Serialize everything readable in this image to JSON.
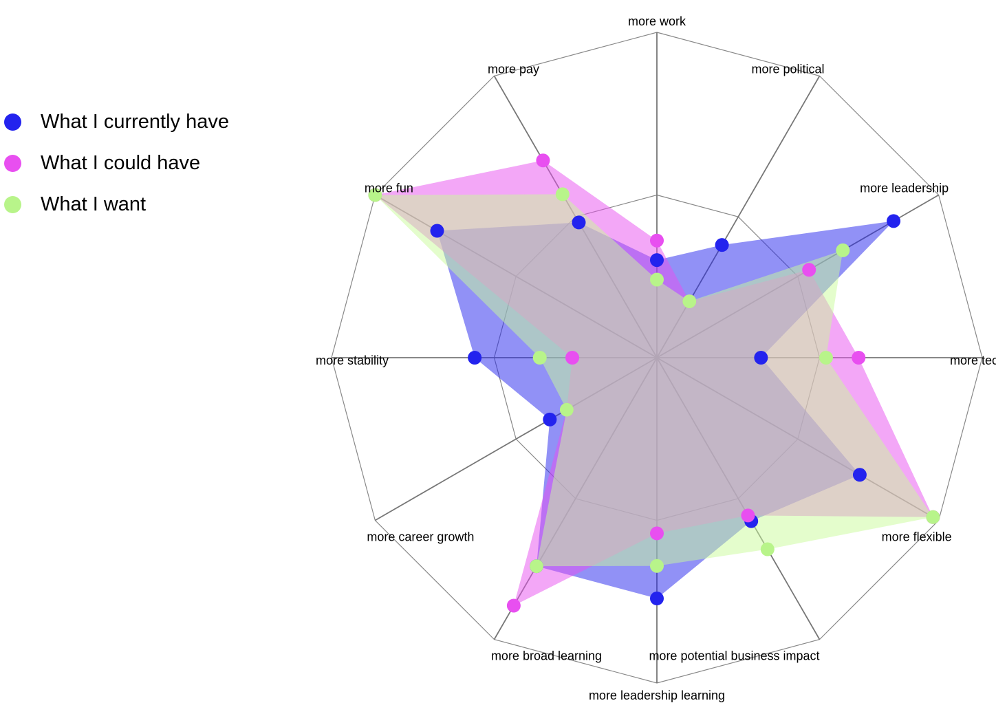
{
  "chart_data": {
    "type": "radar",
    "axes": [
      "more work",
      "more political",
      "more leadership",
      "more technical",
      "more flexible",
      "more potential business impact",
      "more leadership learning",
      "more broad learning",
      "more career growth",
      "more stability",
      "more fun",
      "more pay"
    ],
    "range": [
      0,
      5
    ],
    "grid_levels": 2,
    "series": [
      {
        "name": "What I currently have",
        "color": "#2323ee",
        "fill": "#2323ee",
        "values": [
          1.5,
          2.0,
          4.2,
          1.6,
          3.6,
          2.9,
          3.7,
          3.7,
          1.9,
          2.8,
          3.9,
          2.4
        ]
      },
      {
        "name": "What I could have",
        "color": "#e84ff0",
        "fill": "#e84ff0",
        "values": [
          1.8,
          1.0,
          2.7,
          3.1,
          4.9,
          2.8,
          2.7,
          4.4,
          1.6,
          1.3,
          5.0,
          3.5
        ]
      },
      {
        "name": "What I want",
        "color": "#b8f48a",
        "fill": "#cafc9a",
        "values": [
          1.2,
          1.0,
          3.3,
          2.6,
          4.9,
          3.4,
          3.2,
          3.7,
          1.6,
          1.8,
          5.0,
          2.9
        ]
      }
    ]
  },
  "legend": {
    "items": [
      {
        "label": "What I currently have",
        "color": "#2323ee"
      },
      {
        "label": "What I could have",
        "color": "#e84ff0"
      },
      {
        "label": "What I want",
        "color": "#b8f48a"
      }
    ]
  }
}
